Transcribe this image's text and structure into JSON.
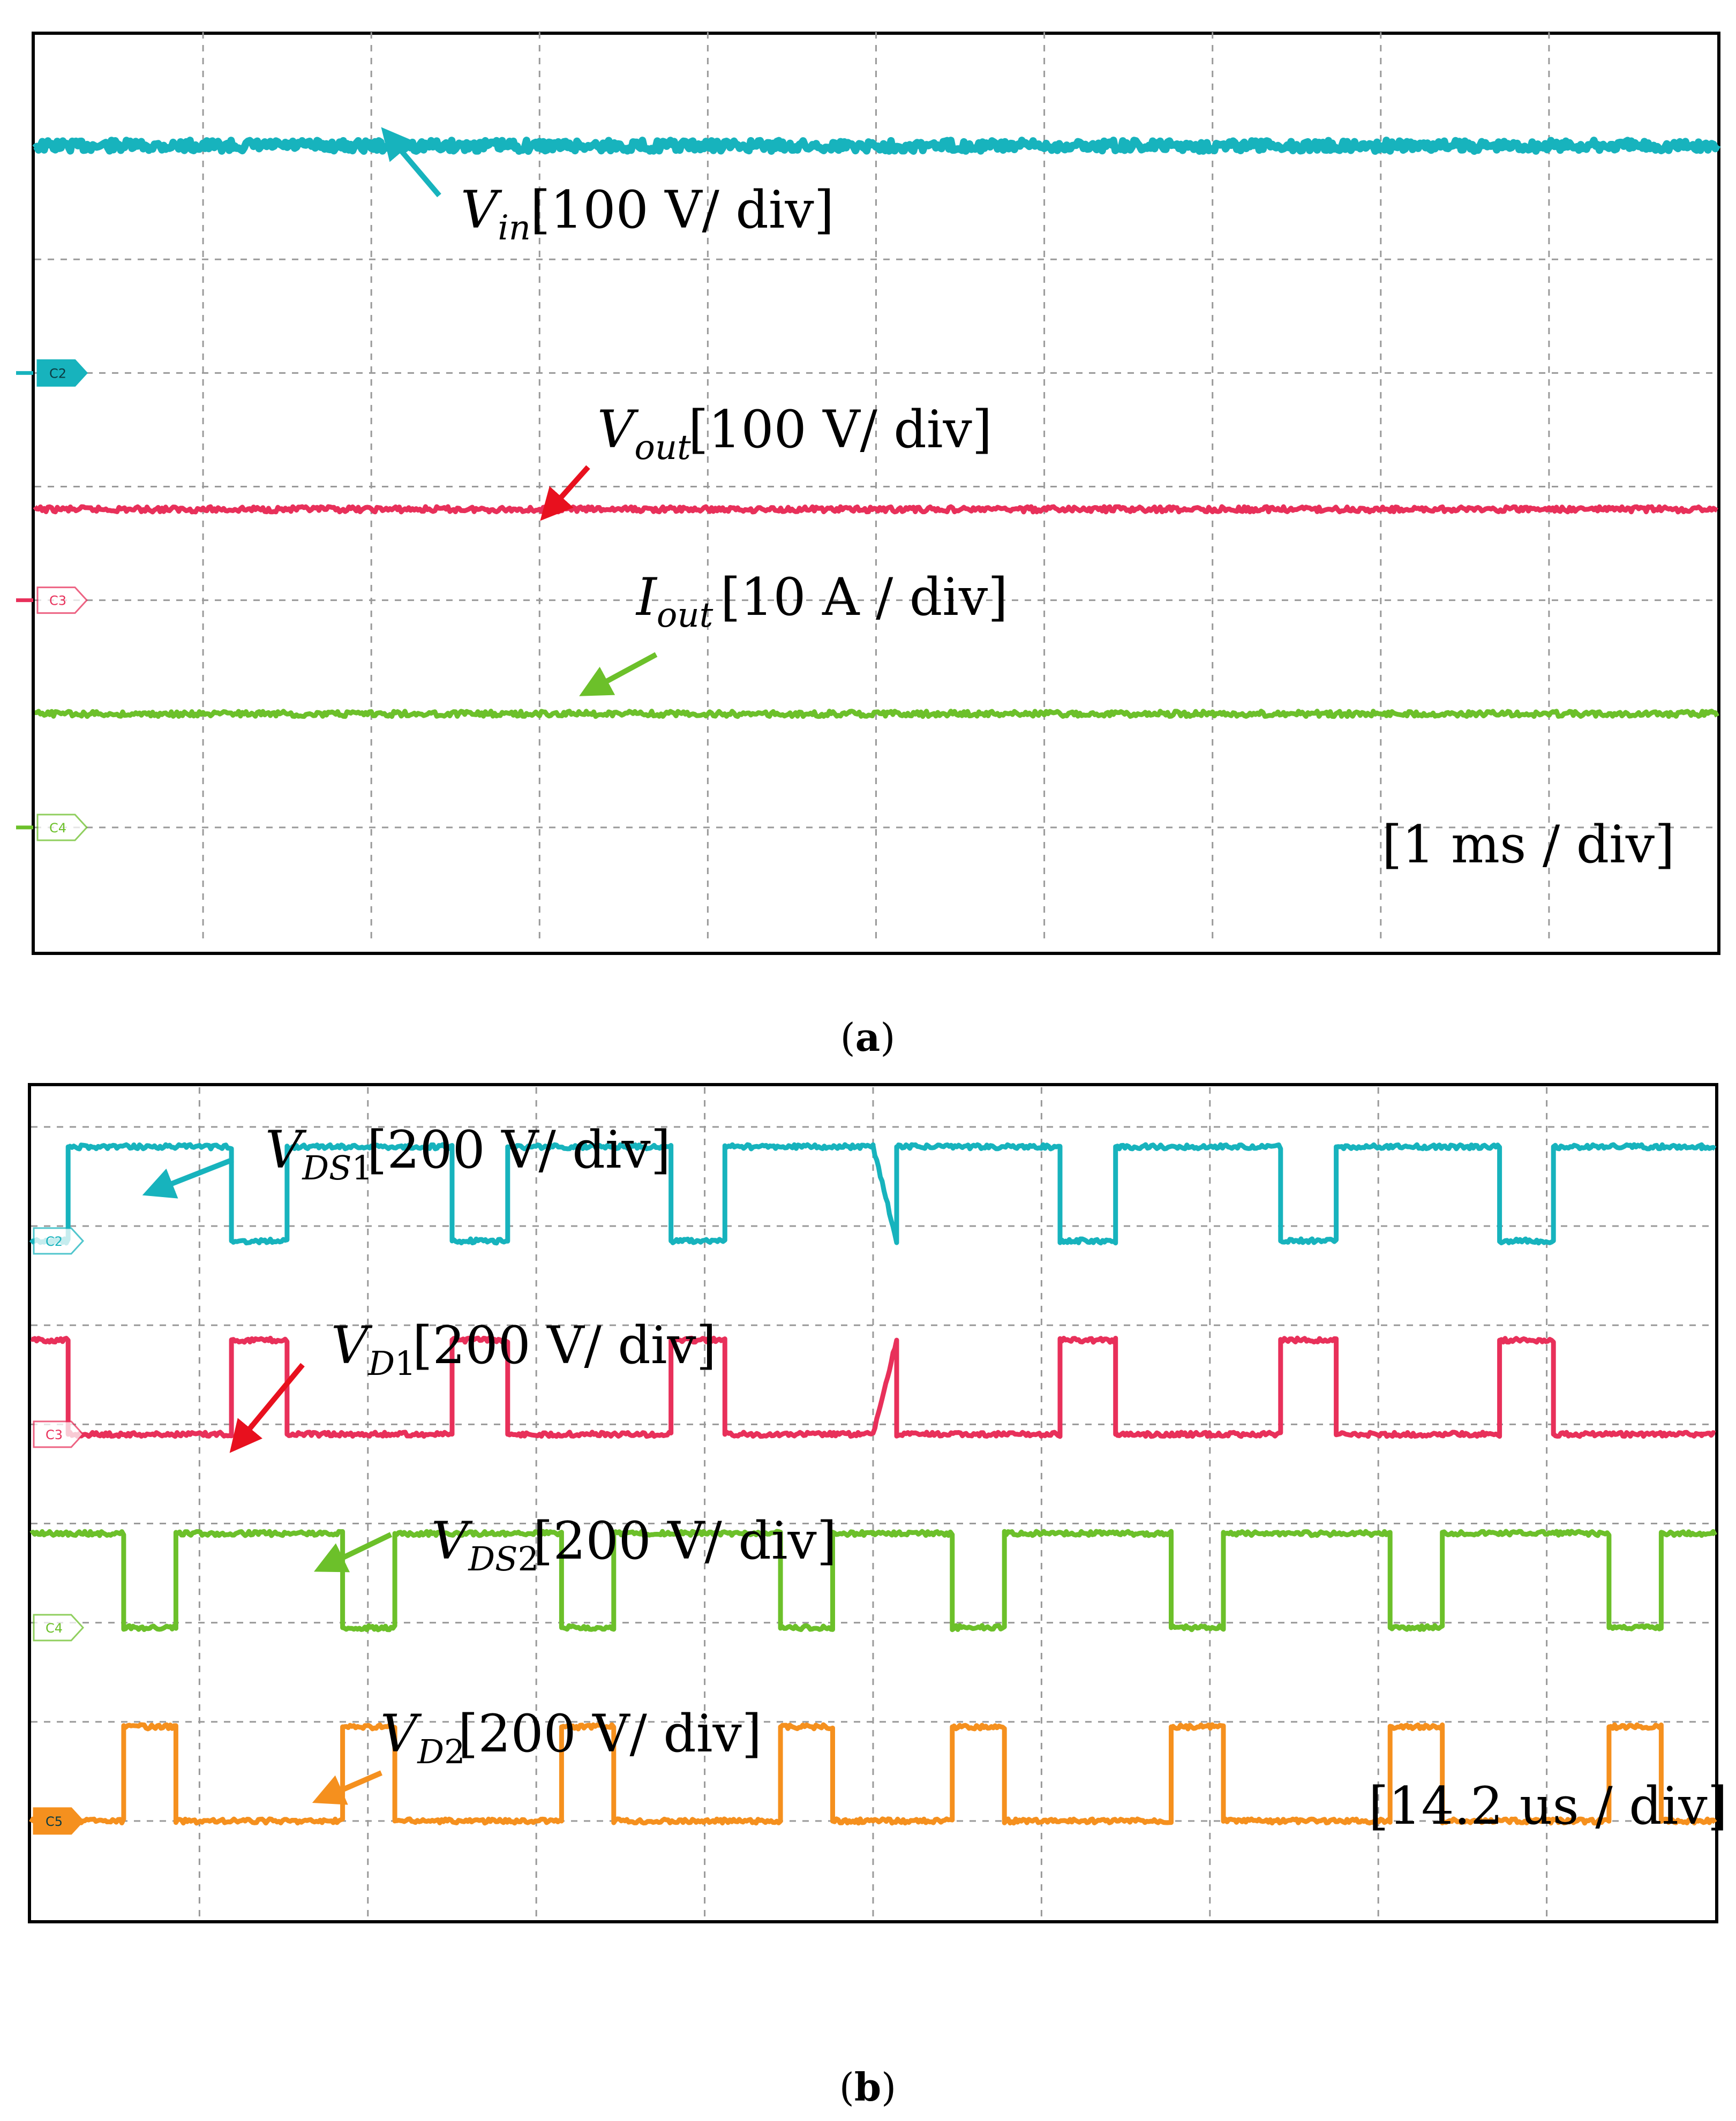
{
  "figure": {
    "panels": [
      {
        "caption": "(a)",
        "caption_letter": "a",
        "timebase": "[1 ms / div]",
        "grid": "dashed",
        "channels": [
          {
            "marker": "C2",
            "color": "#17b3bd",
            "label_main": "V",
            "label_sub": "in",
            "label_scale": "[100 V/ div]"
          },
          {
            "marker": "C3",
            "color": "#e8305a",
            "label_main": "V",
            "label_sub": "out",
            "label_scale": "[100 V/ div]"
          },
          {
            "marker": "C4",
            "color": "#6cc02a",
            "label_main": "I",
            "label_sub": "out",
            "label_scale": "[10 A / div]"
          }
        ]
      },
      {
        "caption": "(b)",
        "caption_letter": "b",
        "timebase": "[14.2 us / div]",
        "grid": "dashed",
        "channels": [
          {
            "marker": "C2",
            "color": "#17b3bd",
            "label_main": "V",
            "label_sub": "DS",
            "label_subsub": "1",
            "label_scale": "[200 V/ div]"
          },
          {
            "marker": "C3",
            "color": "#e8305a",
            "label_main": "V",
            "label_sub": "D",
            "label_subsub": "1",
            "label_scale": "[200 V/ div]"
          },
          {
            "marker": "C4",
            "color": "#6cc02a",
            "label_main": "V",
            "label_sub": "DS",
            "label_subsub": "2",
            "label_scale": "[200 V/ div]"
          },
          {
            "marker": "C5",
            "color": "#f5901e",
            "label_main": "V",
            "label_sub": "D",
            "label_subsub": "2",
            "label_scale": "[200 V/ div]"
          }
        ]
      }
    ]
  },
  "chart_data": [
    {
      "type": "line",
      "title": "(a)",
      "xlabel": "[1 ms / div]",
      "x_divisions": 10,
      "y_divisions": 8,
      "xlim": [
        0,
        10
      ],
      "series": [
        {
          "name": "Vin [100 V/ div]",
          "level_div": 7.0,
          "shape": "dc",
          "points": [
            [
              0,
              7.0
            ],
            [
              10,
              7.0
            ]
          ]
        },
        {
          "name": "Vout [100 V/ div]",
          "level_div": 3.8,
          "shape": "dc",
          "points": [
            [
              0,
              3.8
            ],
            [
              10,
              3.8
            ]
          ]
        },
        {
          "name": "Iout [10 A / div]",
          "level_div": 2.0,
          "shape": "dc",
          "points": [
            [
              0,
              2.0
            ],
            [
              10,
              2.0
            ]
          ]
        }
      ]
    },
    {
      "type": "line",
      "title": "(b)",
      "xlabel": "[14.2 us / div]",
      "x_divisions": 10,
      "y_divisions": 8,
      "xlim": [
        0,
        10
      ],
      "series": [
        {
          "name": "VDS1 [200 V/ div]",
          "points": [
            [
              0.0,
              6.85
            ],
            [
              0.22,
              6.85
            ],
            [
              0.22,
              7.8
            ],
            [
              1.19,
              7.8
            ],
            [
              1.19,
              6.85
            ],
            [
              1.52,
              6.85
            ],
            [
              1.52,
              7.8
            ],
            [
              2.5,
              7.8
            ],
            [
              2.5,
              6.85
            ],
            [
              2.83,
              6.85
            ],
            [
              2.83,
              7.8
            ],
            [
              3.8,
              7.8
            ],
            [
              3.8,
              6.85
            ],
            [
              4.12,
              6.85
            ],
            [
              4.12,
              7.8
            ],
            [
              5.0,
              7.8
            ]
          ]
        },
        {
          "name": "VD1 [200 V/ div]",
          "points": [
            [
              0.0,
              5.85
            ],
            [
              0.22,
              5.85
            ],
            [
              0.22,
              4.9
            ],
            [
              1.19,
              4.9
            ],
            [
              1.19,
              5.85
            ],
            [
              1.52,
              5.85
            ],
            [
              1.52,
              4.9
            ],
            [
              2.5,
              4.9
            ],
            [
              2.5,
              5.85
            ],
            [
              2.83,
              5.85
            ],
            [
              2.83,
              4.9
            ],
            [
              3.8,
              4.9
            ],
            [
              3.8,
              5.85
            ],
            [
              4.12,
              5.85
            ],
            [
              4.12,
              4.9
            ],
            [
              5.0,
              4.9
            ]
          ]
        },
        {
          "name": "VDS2 [200 V/ div]",
          "points": [
            [
              0.0,
              3.9
            ],
            [
              0.55,
              3.9
            ],
            [
              0.55,
              2.95
            ],
            [
              0.86,
              2.95
            ],
            [
              0.86,
              3.9
            ],
            [
              1.85,
              3.9
            ],
            [
              1.85,
              2.95
            ],
            [
              2.16,
              2.95
            ],
            [
              2.16,
              3.9
            ],
            [
              3.15,
              3.9
            ],
            [
              3.15,
              2.95
            ],
            [
              3.46,
              2.95
            ],
            [
              3.46,
              3.9
            ],
            [
              4.45,
              3.9
            ],
            [
              4.45,
              2.95
            ],
            [
              4.76,
              2.95
            ],
            [
              4.76,
              3.9
            ],
            [
              5.0,
              3.9
            ]
          ]
        },
        {
          "name": "VD2 [200 V/ div]",
          "points": [
            [
              0.0,
              1.0
            ],
            [
              0.55,
              1.0
            ],
            [
              0.55,
              1.95
            ],
            [
              0.86,
              1.95
            ],
            [
              0.86,
              1.0
            ],
            [
              1.85,
              1.0
            ],
            [
              1.85,
              1.95
            ],
            [
              2.16,
              1.95
            ],
            [
              2.16,
              1.0
            ],
            [
              3.15,
              1.0
            ],
            [
              3.15,
              1.95
            ],
            [
              3.46,
              1.95
            ],
            [
              3.46,
              1.0
            ],
            [
              4.45,
              1.0
            ],
            [
              4.45,
              1.95
            ],
            [
              4.76,
              1.95
            ],
            [
              4.76,
              1.0
            ],
            [
              5.0,
              1.0
            ]
          ]
        }
      ]
    }
  ]
}
